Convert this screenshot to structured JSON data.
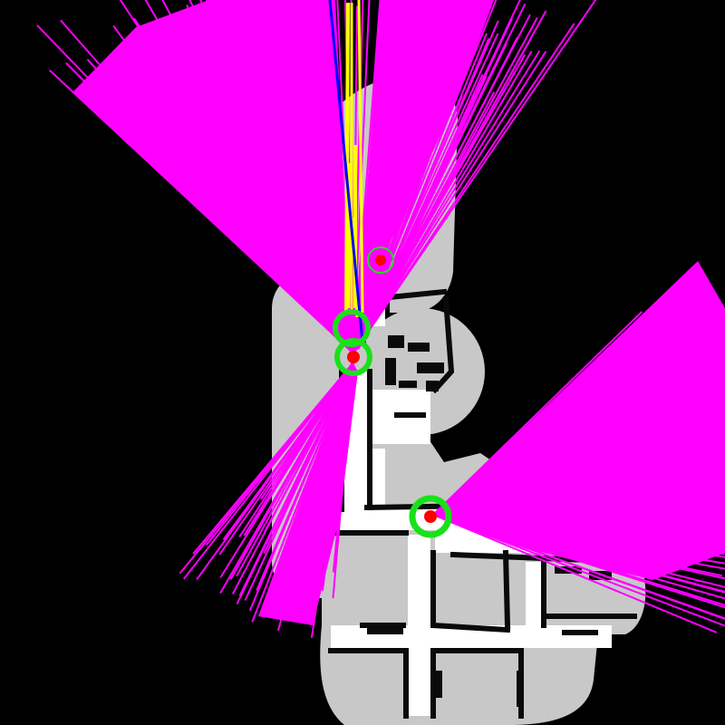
{
  "view": {
    "background_color": "#000000"
  },
  "map": {
    "unknown_color": "#000000",
    "explored_color": "#c8c8c8",
    "free_color": "#ffffff",
    "obstacle_color": "#0a0a0a"
  },
  "lidar_fans": {
    "color": "#ff00ff",
    "scan_count": 3
  },
  "trajectory": {
    "planned_path_color": "#ffff00",
    "heading_line_color": "#0000ff"
  },
  "markers": {
    "pose_color": "#ff0000",
    "ring_color": "#19e119",
    "pose_count": 4
  }
}
